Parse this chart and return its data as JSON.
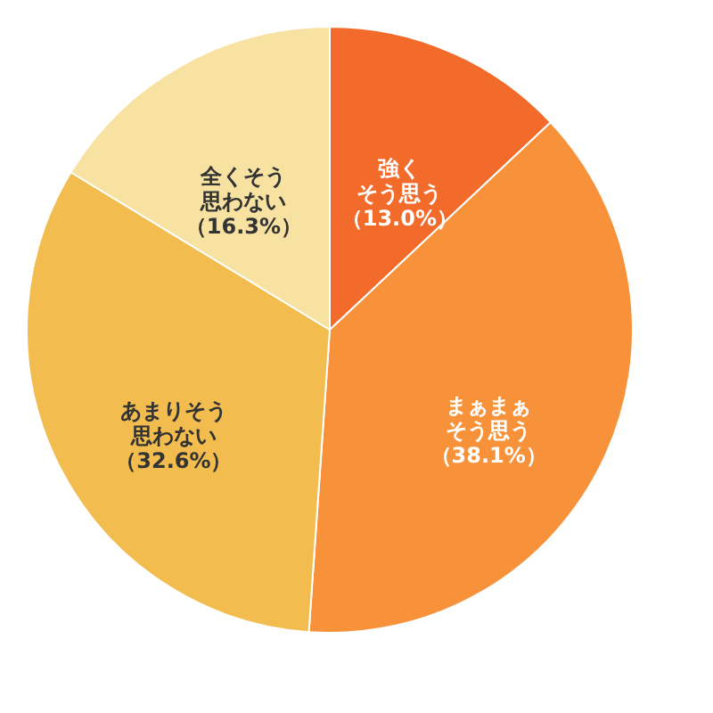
{
  "chart_data": {
    "type": "pie",
    "categories": [
      "強くそう思う",
      "まぁまぁそう思う",
      "あまりそう思わない",
      "全くそう思わない"
    ],
    "values": [
      13.0,
      38.1,
      32.6,
      16.3
    ],
    "value_labels": [
      "（13.0%）",
      "（38.1%）",
      "（32.6%）",
      "（16.3%）"
    ],
    "colors": [
      "#f26b2a",
      "#f7923a",
      "#f2bd4e",
      "#f8e2a2"
    ],
    "legend": false
  }
}
